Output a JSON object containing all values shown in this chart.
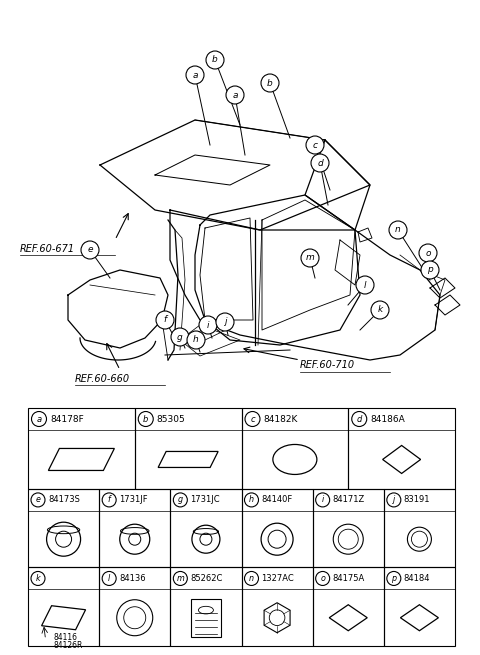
{
  "bg_color": "#ffffff",
  "line_color": "#000000",
  "row1_parts": [
    {
      "label": "a",
      "part_no": "84178F"
    },
    {
      "label": "b",
      "part_no": "85305"
    },
    {
      "label": "c",
      "part_no": "84182K"
    },
    {
      "label": "d",
      "part_no": "84186A"
    }
  ],
  "row2_parts": [
    {
      "label": "e",
      "part_no": "84173S"
    },
    {
      "label": "f",
      "part_no": "1731JF"
    },
    {
      "label": "g",
      "part_no": "1731JC"
    },
    {
      "label": "h",
      "part_no": "84140F"
    },
    {
      "label": "i",
      "part_no": "84171Z"
    },
    {
      "label": "j",
      "part_no": "83191"
    }
  ],
  "row3_parts": [
    {
      "label": "k",
      "part_no": ""
    },
    {
      "label": "l",
      "part_no": "84136"
    },
    {
      "label": "m",
      "part_no": "85262C"
    },
    {
      "label": "n",
      "part_no": "1327AC"
    },
    {
      "label": "o",
      "part_no": "84175A"
    },
    {
      "label": "p",
      "part_no": "84184"
    }
  ],
  "row3_extra": [
    "84116",
    "84126R"
  ]
}
